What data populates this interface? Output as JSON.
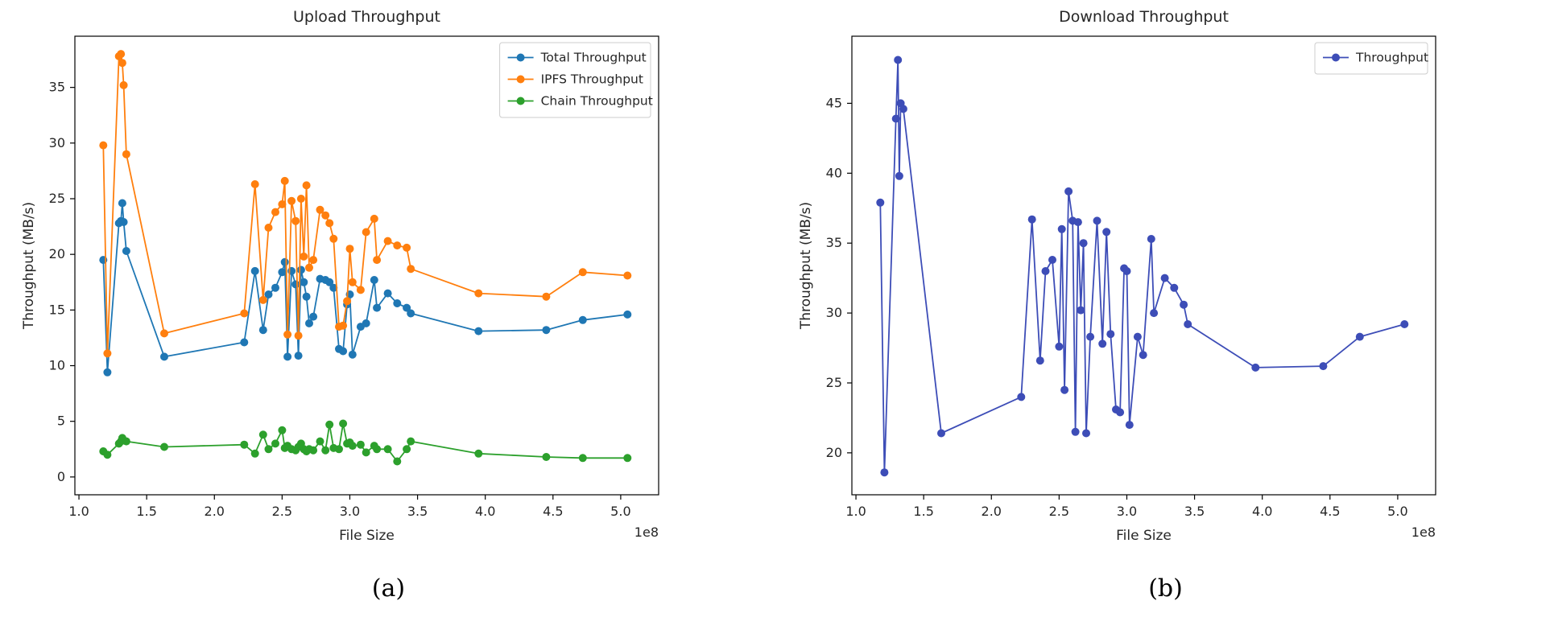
{
  "figure": {
    "caption_a": "(a)",
    "caption_b": "(b)"
  },
  "chart_data": [
    {
      "type": "line",
      "title": "Upload Throughput",
      "xlabel": "File Size",
      "ylabel": "Throughput (MB/s)",
      "x_offset": "1e8",
      "xlim": [
        0.97,
        5.28
      ],
      "ylim": [
        -1.6,
        39.6
      ],
      "xticks": [
        1.0,
        1.5,
        2.0,
        2.5,
        3.0,
        3.5,
        4.0,
        4.5,
        5.0
      ],
      "yticks": [
        0,
        5,
        10,
        15,
        20,
        25,
        30,
        35
      ],
      "grid": false,
      "legend_position": "upper right",
      "x": [
        1.18,
        1.21,
        1.295,
        1.31,
        1.32,
        1.33,
        1.35,
        1.63,
        2.22,
        2.3,
        2.36,
        2.4,
        2.45,
        2.5,
        2.52,
        2.54,
        2.57,
        2.6,
        2.62,
        2.64,
        2.66,
        2.68,
        2.7,
        2.73,
        2.78,
        2.82,
        2.85,
        2.88,
        2.92,
        2.95,
        2.98,
        3.0,
        3.02,
        3.08,
        3.12,
        3.18,
        3.2,
        3.28,
        3.35,
        3.42,
        3.45,
        3.95,
        4.45,
        4.72,
        5.05
      ],
      "series": [
        {
          "name": "Total Throughput",
          "color": "#1f77b4",
          "values": [
            19.5,
            9.4,
            22.8,
            23.0,
            24.6,
            22.9,
            20.3,
            10.8,
            12.1,
            18.5,
            13.2,
            16.4,
            17.0,
            18.4,
            19.3,
            10.8,
            18.5,
            17.3,
            10.9,
            18.6,
            17.5,
            16.2,
            13.8,
            14.4,
            17.8,
            17.7,
            17.5,
            17.0,
            11.5,
            11.3,
            15.5,
            16.4,
            11.0,
            13.5,
            13.8,
            17.7,
            15.2,
            16.5,
            15.6,
            15.2,
            14.7,
            13.1,
            13.2,
            14.1,
            14.6
          ]
        },
        {
          "name": "IPFS Throughput",
          "color": "#ff7f0e",
          "values": [
            29.8,
            11.1,
            37.8,
            38.0,
            37.2,
            35.2,
            29.0,
            12.9,
            14.7,
            26.3,
            15.9,
            22.4,
            23.8,
            24.5,
            26.6,
            12.8,
            24.8,
            23.0,
            12.7,
            25.0,
            19.8,
            26.2,
            18.8,
            19.5,
            24.0,
            23.5,
            22.8,
            21.4,
            13.5,
            13.6,
            15.8,
            20.5,
            17.5,
            16.8,
            22.0,
            23.2,
            19.5,
            21.2,
            20.8,
            20.6,
            18.7,
            16.5,
            16.2,
            18.4,
            18.1
          ]
        },
        {
          "name": "Chain Throughput",
          "color": "#2ca02c",
          "values": [
            2.3,
            2.0,
            3.0,
            3.2,
            3.5,
            3.3,
            3.2,
            2.7,
            2.9,
            2.1,
            3.8,
            2.5,
            3.0,
            4.2,
            2.6,
            2.8,
            2.5,
            2.4,
            2.7,
            3.0,
            2.5,
            2.3,
            2.5,
            2.4,
            3.2,
            2.4,
            4.7,
            2.6,
            2.5,
            4.8,
            3.0,
            3.1,
            2.8,
            2.9,
            2.2,
            2.8,
            2.5,
            2.5,
            1.4,
            2.5,
            3.2,
            2.1,
            1.8,
            1.7,
            1.7
          ]
        }
      ]
    },
    {
      "type": "line",
      "title": "Download Throughput",
      "xlabel": "File Size",
      "ylabel": "Throughput (MB/s)",
      "x_offset": "1e8",
      "xlim": [
        0.97,
        5.28
      ],
      "ylim": [
        17.0,
        49.8
      ],
      "xticks": [
        1.0,
        1.5,
        2.0,
        2.5,
        3.0,
        3.5,
        4.0,
        4.5,
        5.0
      ],
      "yticks": [
        20,
        25,
        30,
        35,
        40,
        45
      ],
      "grid": false,
      "legend_position": "upper right",
      "x": [
        1.18,
        1.21,
        1.295,
        1.31,
        1.32,
        1.33,
        1.35,
        1.63,
        2.22,
        2.3,
        2.36,
        2.4,
        2.45,
        2.5,
        2.52,
        2.54,
        2.57,
        2.6,
        2.62,
        2.64,
        2.66,
        2.68,
        2.7,
        2.73,
        2.78,
        2.82,
        2.85,
        2.88,
        2.92,
        2.95,
        2.98,
        3.0,
        3.02,
        3.08,
        3.12,
        3.18,
        3.2,
        3.28,
        3.35,
        3.42,
        3.45,
        3.95,
        4.45,
        4.72,
        5.05
      ],
      "series": [
        {
          "name": "Throughput",
          "color": "#3d4db7",
          "values": [
            37.9,
            18.6,
            43.9,
            48.1,
            39.8,
            45.0,
            44.6,
            21.4,
            24.0,
            36.7,
            26.6,
            33.0,
            33.8,
            27.6,
            36.0,
            24.5,
            38.7,
            36.6,
            21.5,
            36.5,
            30.2,
            35.0,
            21.4,
            28.3,
            36.6,
            27.8,
            35.8,
            28.5,
            23.1,
            22.9,
            33.2,
            33.0,
            22.0,
            28.3,
            27.0,
            35.3,
            30.0,
            32.5,
            31.8,
            30.6,
            29.2,
            26.1,
            26.2,
            28.3,
            29.2
          ]
        }
      ]
    }
  ]
}
